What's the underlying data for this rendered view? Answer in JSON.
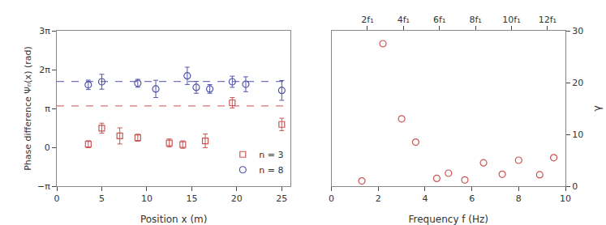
{
  "chart_data": [
    {
      "type": "scatter",
      "x_label": "Position x (m)",
      "y_label": "Phase difference Ψₙ(x) (rad)",
      "xlim": [
        0,
        26
      ],
      "xticks": [
        0,
        5,
        10,
        15,
        20,
        25
      ],
      "ylim": [
        -3.141592653589793,
        9.42477796076938
      ],
      "yticks": [
        {
          "value": -3.141592653589793,
          "label": "−π"
        },
        0,
        {
          "value": 3.141592653589793,
          "label": "π"
        },
        {
          "value": 6.283185307179586,
          "label": "2π"
        },
        {
          "value": 9.42477796076938,
          "label": "3π"
        }
      ],
      "grid": false,
      "legend": "lower right",
      "series": [
        {
          "name": "n = 3",
          "color": "#cc5555",
          "marker": "square-open",
          "x": [
            3.5,
            5.0,
            7.0,
            9.0,
            12.5,
            14.0,
            16.5,
            19.5,
            25.0
          ],
          "values": [
            0.25,
            1.55,
            0.92,
            0.78,
            0.35,
            0.22,
            0.52,
            3.6,
            1.85
          ],
          "errors": [
            0.28,
            0.4,
            0.65,
            0.28,
            0.32,
            0.3,
            0.55,
            0.42,
            0.5
          ]
        },
        {
          "name": "n = 8",
          "color": "#5555aa",
          "marker": "circle-open",
          "x": [
            3.5,
            5.0,
            9.0,
            11.0,
            14.5,
            15.5,
            17.0,
            19.5,
            21.0,
            25.0
          ],
          "values": [
            5.05,
            5.3,
            5.18,
            4.72,
            5.78,
            4.85,
            4.72,
            5.3,
            5.1,
            4.6
          ],
          "errors": [
            0.38,
            0.6,
            0.32,
            0.7,
            0.7,
            0.48,
            0.35,
            0.45,
            0.6,
            0.8
          ]
        }
      ],
      "reference_lines": [
        {
          "y": 5.32,
          "color": "#5555aa",
          "line_style": "dashed"
        },
        {
          "y": 3.35,
          "color": "#cc5555",
          "line_style": "dashed"
        }
      ]
    },
    {
      "type": "scatter",
      "x_label": "Frequency f (Hz)",
      "y_label": "γ",
      "xlim": [
        0,
        10
      ],
      "xticks": [
        0,
        2,
        4,
        6,
        8,
        10
      ],
      "ylim": [
        0,
        30
      ],
      "yticks": [
        0,
        10,
        20,
        30
      ],
      "x2lim": [
        0,
        13.0
      ],
      "x2ticks": [
        {
          "value": 2.0,
          "label": "2f₁"
        },
        {
          "value": 4.0,
          "label": "4f₁"
        },
        {
          "value": 6.0,
          "label": "6f₁"
        },
        {
          "value": 8.0,
          "label": "8f₁"
        },
        {
          "value": 10.0,
          "label": "10f₁"
        },
        {
          "value": 12.0,
          "label": "12f₁"
        }
      ],
      "grid": false,
      "color": "#cc5555",
      "marker": "circle-open",
      "x": [
        1.3,
        2.2,
        3.0,
        3.6,
        4.5,
        5.0,
        5.7,
        6.5,
        7.3,
        8.0,
        8.9,
        9.5
      ],
      "values": [
        1.0,
        27.5,
        13.0,
        8.5,
        1.5,
        2.5,
        1.2,
        4.5,
        2.3,
        5.0,
        2.2,
        5.5
      ]
    }
  ]
}
